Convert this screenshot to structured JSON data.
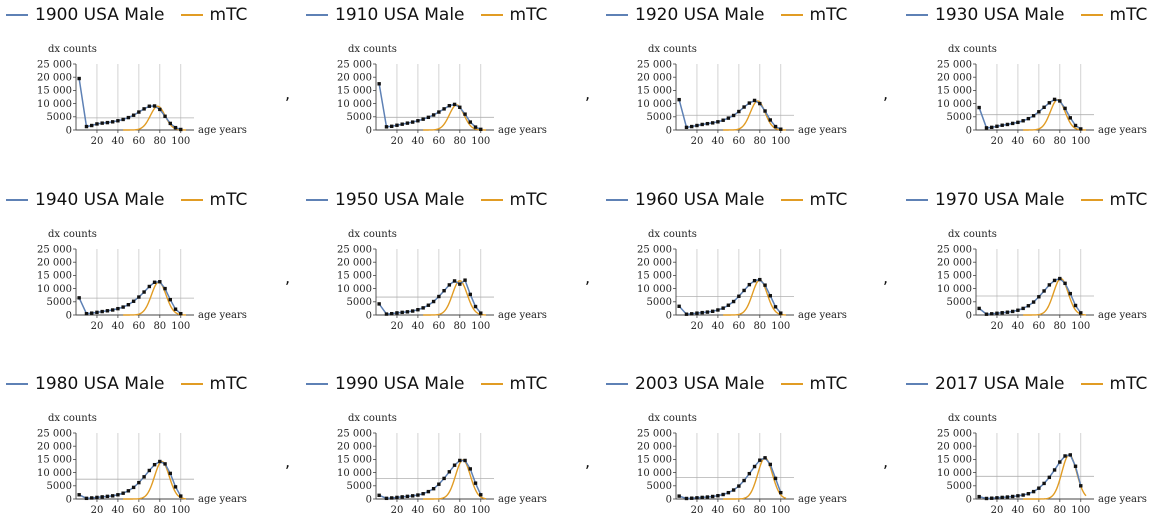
{
  "chart_data": [
    {
      "type": "line",
      "series": [
        {
          "name": "1900 USA Male",
          "color": "#5e81b5",
          "values": [
            19500,
            1300,
            1700,
            2300,
            2600,
            2800,
            3100,
            3500,
            4000,
            4700,
            5600,
            6800,
            8000,
            9000,
            9100,
            7800,
            5200,
            2500,
            900,
            200
          ]
        },
        {
          "name": "mTC",
          "color": "#e19c24",
          "peak": 9000,
          "mode": 78,
          "sd": 7
        }
      ],
      "x": [
        3,
        10,
        15,
        20,
        25,
        30,
        35,
        40,
        45,
        50,
        55,
        60,
        65,
        70,
        75,
        80,
        85,
        90,
        95,
        100
      ],
      "xlabel": "age years",
      "ylabel": "dx counts",
      "xticks": [
        20,
        40,
        60,
        80,
        100
      ],
      "yticks": [
        0,
        5000,
        10000,
        15000,
        20000,
        25000
      ],
      "ytick_labels": [
        "0",
        "5000",
        "10 000",
        "15 000",
        "20 000",
        "25 000"
      ],
      "ylim": [
        0,
        25000
      ],
      "xlim": [
        0,
        105
      ],
      "hline": 4600
    },
    {
      "type": "line",
      "series": [
        {
          "name": "1910 USA Male",
          "color": "#5e81b5",
          "values": [
            17500,
            1200,
            1400,
            1800,
            2200,
            2600,
            3000,
            3500,
            4100,
            4800,
            5700,
            6800,
            8000,
            9200,
            9700,
            8600,
            6000,
            3000,
            1100,
            250
          ]
        },
        {
          "name": "mTC",
          "color": "#e19c24",
          "peak": 9500,
          "mode": 77,
          "sd": 7
        }
      ],
      "x": [
        3,
        10,
        15,
        20,
        25,
        30,
        35,
        40,
        45,
        50,
        55,
        60,
        65,
        70,
        75,
        80,
        85,
        90,
        95,
        100
      ],
      "xlabel": "age years",
      "ylabel": "dx counts",
      "xticks": [
        20,
        40,
        60,
        80,
        100
      ],
      "yticks": [
        0,
        5000,
        10000,
        15000,
        20000,
        25000
      ],
      "ytick_labels": [
        "0",
        "5000",
        "10 000",
        "15 000",
        "20 000",
        "25 000"
      ],
      "ylim": [
        0,
        25000
      ],
      "xlim": [
        0,
        105
      ],
      "hline": 4800
    },
    {
      "type": "line",
      "series": [
        {
          "name": "1920 USA Male",
          "color": "#5e81b5",
          "values": [
            11500,
            1000,
            1300,
            1700,
            2100,
            2400,
            2700,
            3100,
            3700,
            4500,
            5500,
            7000,
            8700,
            10200,
            11200,
            10000,
            7200,
            3800,
            1300,
            300
          ]
        },
        {
          "name": "mTC",
          "color": "#e19c24",
          "peak": 11000,
          "mode": 78,
          "sd": 7
        }
      ],
      "x": [
        3,
        10,
        15,
        20,
        25,
        30,
        35,
        40,
        45,
        50,
        55,
        60,
        65,
        70,
        75,
        80,
        85,
        90,
        95,
        100
      ],
      "xlabel": "age years",
      "ylabel": "dx counts",
      "xticks": [
        20,
        40,
        60,
        80,
        100
      ],
      "yticks": [
        0,
        5000,
        10000,
        15000,
        20000,
        25000
      ],
      "ytick_labels": [
        "0",
        "5000",
        "10 000",
        "15 000",
        "20 000",
        "25 000"
      ],
      "ylim": [
        0,
        25000
      ],
      "xlim": [
        0,
        105
      ],
      "hline": 5600
    },
    {
      "type": "line",
      "series": [
        {
          "name": "1930 USA Male",
          "color": "#5e81b5",
          "values": [
            8500,
            800,
            1000,
            1400,
            1800,
            2100,
            2500,
            2900,
            3500,
            4300,
            5400,
            6900,
            8600,
            10300,
            11600,
            11000,
            8200,
            4600,
            1700,
            400
          ]
        },
        {
          "name": "mTC",
          "color": "#e19c24",
          "peak": 11500,
          "mode": 78,
          "sd": 7
        }
      ],
      "x": [
        3,
        10,
        15,
        20,
        25,
        30,
        35,
        40,
        45,
        50,
        55,
        60,
        65,
        70,
        75,
        80,
        85,
        90,
        95,
        100
      ],
      "xlabel": "age years",
      "ylabel": "dx counts",
      "xticks": [
        20,
        40,
        60,
        80,
        100
      ],
      "yticks": [
        0,
        5000,
        10000,
        15000,
        20000,
        25000
      ],
      "ytick_labels": [
        "0",
        "5000",
        "10 000",
        "15 000",
        "20 000",
        "25 000"
      ],
      "ylim": [
        0,
        25000
      ],
      "xlim": [
        0,
        105
      ],
      "hline": 5800
    },
    {
      "type": "line",
      "series": [
        {
          "name": "1940 USA Male",
          "color": "#5e81b5",
          "values": [
            6500,
            500,
            700,
            1000,
            1300,
            1600,
            1900,
            2400,
            3000,
            3900,
            5200,
            6800,
            8700,
            10800,
            12400,
            12600,
            10000,
            5800,
            2200,
            500
          ]
        },
        {
          "name": "mTC",
          "color": "#e19c24",
          "peak": 12500,
          "mode": 79,
          "sd": 7
        }
      ],
      "x": [
        3,
        10,
        15,
        20,
        25,
        30,
        35,
        40,
        45,
        50,
        55,
        60,
        65,
        70,
        75,
        80,
        85,
        90,
        95,
        100
      ],
      "xlabel": "age years",
      "ylabel": "dx counts",
      "xticks": [
        20,
        40,
        60,
        80,
        100
      ],
      "yticks": [
        0,
        5000,
        10000,
        15000,
        20000,
        25000
      ],
      "ytick_labels": [
        "0",
        "5000",
        "10 000",
        "15 000",
        "20 000",
        "25 000"
      ],
      "ylim": [
        0,
        25000
      ],
      "xlim": [
        0,
        105
      ],
      "hline": 6400
    },
    {
      "type": "line",
      "series": [
        {
          "name": "1950 USA Male",
          "color": "#5e81b5",
          "values": [
            4200,
            350,
            500,
            800,
            1000,
            1200,
            1500,
            2000,
            2700,
            3700,
            5100,
            7000,
            9200,
            11400,
            12900,
            11700,
            13200,
            7800,
            3200,
            700
          ]
        },
        {
          "name": "mTC",
          "color": "#e19c24",
          "peak": 13000,
          "mode": 80,
          "sd": 7
        }
      ],
      "x": [
        3,
        10,
        15,
        20,
        25,
        30,
        35,
        40,
        45,
        50,
        55,
        60,
        65,
        70,
        75,
        80,
        85,
        90,
        95,
        100
      ],
      "xlabel": "age years",
      "ylabel": "dx counts",
      "xticks": [
        20,
        40,
        60,
        80,
        100
      ],
      "yticks": [
        0,
        5000,
        10000,
        15000,
        20000,
        25000
      ],
      "ytick_labels": [
        "0",
        "5000",
        "10 000",
        "15 000",
        "20 000",
        "25 000"
      ],
      "ylim": [
        0,
        25000
      ],
      "xlim": [
        0,
        105
      ],
      "hline": 6800
    },
    {
      "type": "line",
      "series": [
        {
          "name": "1960 USA Male",
          "color": "#5e81b5",
          "values": [
            3300,
            300,
            450,
            700,
            900,
            1100,
            1400,
            1900,
            2600,
            3700,
            5100,
            7100,
            9300,
            11500,
            13000,
            13400,
            11300,
            7300,
            3100,
            700
          ]
        },
        {
          "name": "mTC",
          "color": "#e19c24",
          "peak": 13300,
          "mode": 80,
          "sd": 7
        }
      ],
      "x": [
        3,
        10,
        15,
        20,
        25,
        30,
        35,
        40,
        45,
        50,
        55,
        60,
        65,
        70,
        75,
        80,
        85,
        90,
        95,
        100
      ],
      "xlabel": "age years",
      "ylabel": "dx counts",
      "xticks": [
        20,
        40,
        60,
        80,
        100
      ],
      "yticks": [
        0,
        5000,
        10000,
        15000,
        20000,
        25000
      ],
      "ytick_labels": [
        "0",
        "5000",
        "10 000",
        "15 000",
        "20 000",
        "25 000"
      ],
      "ylim": [
        0,
        25000
      ],
      "xlim": [
        0,
        105
      ],
      "hline": 7000
    },
    {
      "type": "line",
      "series": [
        {
          "name": "1970 USA Male",
          "color": "#5e81b5",
          "values": [
            2500,
            300,
            450,
            650,
            850,
            1050,
            1350,
            1800,
            2500,
            3500,
            4900,
            6900,
            9100,
            11400,
            13100,
            13800,
            12000,
            8100,
            3600,
            800
          ]
        },
        {
          "name": "mTC",
          "color": "#e19c24",
          "peak": 13800,
          "mode": 81,
          "sd": 7
        }
      ],
      "x": [
        3,
        10,
        15,
        20,
        25,
        30,
        35,
        40,
        45,
        50,
        55,
        60,
        65,
        70,
        75,
        80,
        85,
        90,
        95,
        100
      ],
      "xlabel": "age years",
      "ylabel": "dx counts",
      "xticks": [
        20,
        40,
        60,
        80,
        100
      ],
      "yticks": [
        0,
        5000,
        10000,
        15000,
        20000,
        25000
      ],
      "ytick_labels": [
        "0",
        "5000",
        "10 000",
        "15 000",
        "20 000",
        "25 000"
      ],
      "ylim": [
        0,
        25000
      ],
      "xlim": [
        0,
        105
      ],
      "hline": 7200
    },
    {
      "type": "line",
      "series": [
        {
          "name": "1980 USA Male",
          "color": "#5e81b5",
          "values": [
            1600,
            250,
            400,
            600,
            800,
            1000,
            1200,
            1600,
            2200,
            3100,
            4400,
            6200,
            8400,
            10800,
            13000,
            14200,
            13300,
            9700,
            4600,
            1100
          ]
        },
        {
          "name": "mTC",
          "color": "#e19c24",
          "peak": 14200,
          "mode": 82,
          "sd": 7
        }
      ],
      "x": [
        3,
        10,
        15,
        20,
        25,
        30,
        35,
        40,
        45,
        50,
        55,
        60,
        65,
        70,
        75,
        80,
        85,
        90,
        95,
        100
      ],
      "xlabel": "age years",
      "ylabel": "dx counts",
      "xticks": [
        20,
        40,
        60,
        80,
        100
      ],
      "yticks": [
        0,
        5000,
        10000,
        15000,
        20000,
        25000
      ],
      "ytick_labels": [
        "0",
        "5000",
        "10 000",
        "15 000",
        "20 000",
        "25 000"
      ],
      "ylim": [
        0,
        25000
      ],
      "xlim": [
        0,
        105
      ],
      "hline": 7500
    },
    {
      "type": "line",
      "series": [
        {
          "name": "1990 USA Male",
          "color": "#5e81b5",
          "values": [
            1400,
            250,
            400,
            600,
            800,
            1000,
            1200,
            1500,
            2000,
            2800,
            3900,
            5600,
            7800,
            10300,
            12800,
            14600,
            14600,
            11400,
            6000,
            1600
          ]
        },
        {
          "name": "mTC",
          "color": "#e19c24",
          "peak": 14800,
          "mode": 83,
          "sd": 7
        }
      ],
      "x": [
        3,
        10,
        15,
        20,
        25,
        30,
        35,
        40,
        45,
        50,
        55,
        60,
        65,
        70,
        75,
        80,
        85,
        90,
        95,
        100
      ],
      "xlabel": "age years",
      "ylabel": "dx counts",
      "xticks": [
        20,
        40,
        60,
        80,
        100
      ],
      "yticks": [
        0,
        5000,
        10000,
        15000,
        20000,
        25000
      ],
      "ytick_labels": [
        "0",
        "5000",
        "10 000",
        "15 000",
        "20 000",
        "25 000"
      ],
      "ylim": [
        0,
        25000
      ],
      "xlim": [
        0,
        105
      ],
      "hline": 7800
    },
    {
      "type": "line",
      "series": [
        {
          "name": "2003 USA Male",
          "color": "#5e81b5",
          "values": [
            1100,
            200,
            300,
            450,
            600,
            750,
            950,
            1250,
            1700,
            2400,
            3400,
            4900,
            7000,
            9600,
            12300,
            14700,
            15600,
            13100,
            7800,
            2400
          ]
        },
        {
          "name": "mTC",
          "color": "#e19c24",
          "peak": 15600,
          "mode": 85,
          "sd": 7
        }
      ],
      "x": [
        3,
        10,
        15,
        20,
        25,
        30,
        35,
        40,
        45,
        50,
        55,
        60,
        65,
        70,
        75,
        80,
        85,
        90,
        95,
        100
      ],
      "xlabel": "age years",
      "ylabel": "dx counts",
      "xticks": [
        20,
        40,
        60,
        80,
        100
      ],
      "yticks": [
        0,
        5000,
        10000,
        15000,
        20000,
        25000
      ],
      "ytick_labels": [
        "0",
        "5000",
        "10 000",
        "15 000",
        "20 000",
        "25 000"
      ],
      "ylim": [
        0,
        25000
      ],
      "xlim": [
        0,
        105
      ],
      "hline": 8200
    },
    {
      "type": "line",
      "series": [
        {
          "name": "2017 USA Male",
          "color": "#5e81b5",
          "values": [
            900,
            200,
            300,
            450,
            600,
            750,
            950,
            1200,
            1500,
            2000,
            2800,
            4100,
            5900,
            8200,
            11000,
            14000,
            16300,
            16700,
            12400,
            5000
          ]
        },
        {
          "name": "mTC",
          "color": "#e19c24",
          "peak": 16800,
          "mode": 89,
          "sd": 7
        }
      ],
      "x": [
        3,
        10,
        15,
        20,
        25,
        30,
        35,
        40,
        45,
        50,
        55,
        60,
        65,
        70,
        75,
        80,
        85,
        90,
        95,
        100
      ],
      "xlabel": "age years",
      "ylabel": "dx counts",
      "xticks": [
        20,
        40,
        60,
        80,
        100
      ],
      "yticks": [
        0,
        5000,
        10000,
        15000,
        20000,
        25000
      ],
      "ytick_labels": [
        "0",
        "5000",
        "10 000",
        "15 000",
        "20 000",
        "25 000"
      ],
      "ylim": [
        0,
        25000
      ],
      "xlim": [
        0,
        105
      ],
      "hline": 8600
    }
  ],
  "separator": ","
}
